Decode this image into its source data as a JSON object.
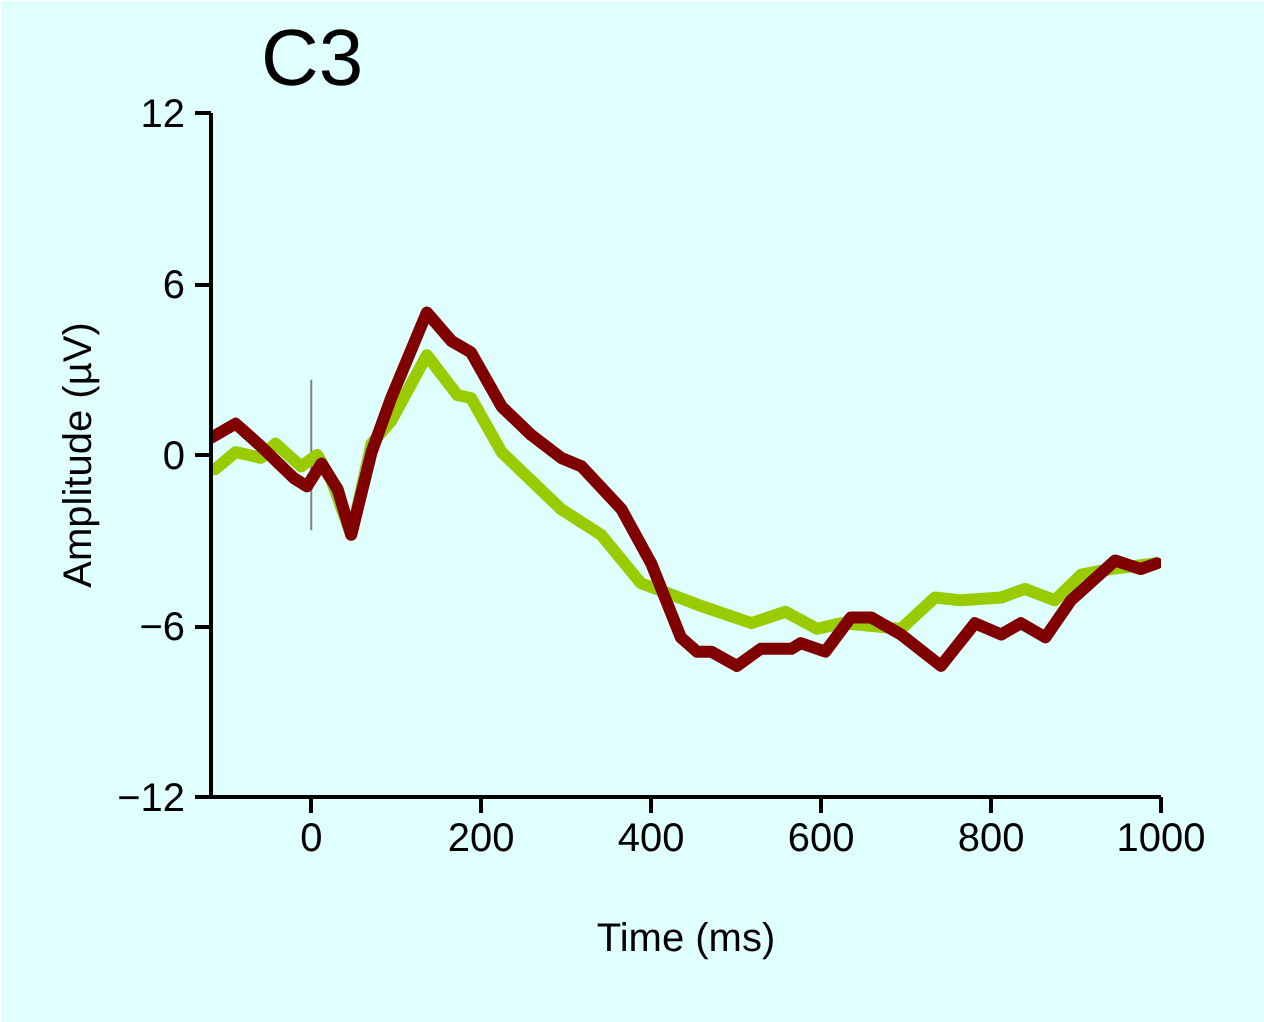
{
  "chart_data": {
    "type": "line",
    "title": "C3",
    "xlabel": "Time (ms)",
    "ylabel": "Amplitude (µV)",
    "xlim": [
      -118,
      1000
    ],
    "ylim": [
      -12,
      12
    ],
    "xticks": [
      0,
      200,
      400,
      600,
      800,
      1000
    ],
    "yticks": [
      -12,
      -6,
      0,
      6,
      12
    ],
    "grid": false,
    "ref_lines": [
      {
        "axis": "x",
        "value": 0,
        "color": "#808080"
      }
    ],
    "series": [
      {
        "color": "#99cc00",
        "x": [
          -113,
          -89,
          -59,
          -42,
          -12,
          7,
          24,
          47,
          71,
          94,
          136,
          172,
          188,
          224,
          259,
          294,
          341,
          388,
          424,
          459,
          518,
          558,
          595,
          624,
          694,
          734,
          765,
          812,
          840,
          875,
          906,
          941,
          995
        ],
        "values": [
          -0.5,
          0.1,
          -0.1,
          0.4,
          -0.4,
          0,
          -0.9,
          -2.8,
          0.4,
          1.2,
          3.5,
          2.1,
          2.0,
          0.1,
          -0.9,
          -1.9,
          -2.8,
          -4.5,
          -4.9,
          -5.3,
          -5.9,
          -5.5,
          -6.1,
          -5.9,
          -6.1,
          -5.0,
          -5.1,
          -5.0,
          -4.7,
          -5.1,
          -4.2,
          -4.0,
          -3.8
        ]
      },
      {
        "color": "#800000",
        "x": [
          -118,
          -89,
          -59,
          -21,
          -5,
          12,
          31,
          47,
          71,
          94,
          136,
          165,
          188,
          224,
          259,
          294,
          318,
          365,
          400,
          435,
          454,
          471,
          501,
          529,
          565,
          576,
          605,
          635,
          659,
          694,
          741,
          781,
          812,
          835,
          864,
          894,
          946,
          976,
          995
        ],
        "values": [
          0.6,
          1.1,
          0.3,
          -0.8,
          -1.1,
          -0.3,
          -1.2,
          -2.8,
          0.1,
          2.0,
          5.0,
          4.0,
          3.6,
          1.7,
          0.7,
          -0.1,
          -0.4,
          -1.9,
          -3.8,
          -6.4,
          -6.9,
          -6.9,
          -7.4,
          -6.8,
          -6.8,
          -6.6,
          -6.9,
          -5.7,
          -5.7,
          -6.3,
          -7.4,
          -5.9,
          -6.3,
          -5.9,
          -6.4,
          -5.1,
          -3.7,
          -4.0,
          -3.8
        ]
      }
    ]
  }
}
